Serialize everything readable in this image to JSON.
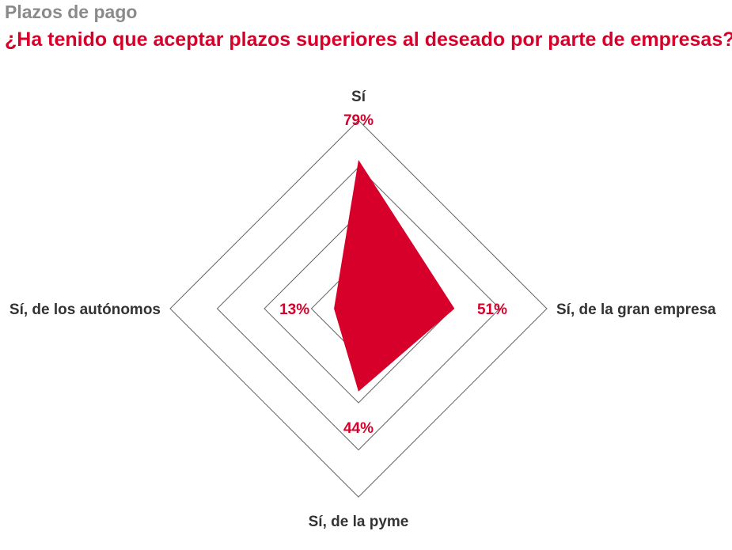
{
  "header": {
    "supertitle": "Plazos de pago",
    "title": "¿Ha tenido que aceptar plazos superiores al deseado por parte de empresas?"
  },
  "colors": {
    "accent": "#d6002a",
    "grid": "#666666",
    "text": "#333333",
    "supertitle": "#8a8a8a"
  },
  "chart_data": {
    "type": "radar",
    "categories": [
      "Sí",
      "Sí, de la gran empresa",
      "Sí, de la pyme",
      "Sí, de los autónomos"
    ],
    "values": [
      79,
      51,
      44,
      13
    ],
    "value_labels": [
      "79%",
      "51%",
      "44%",
      "13%"
    ],
    "rlim": [
      0,
      100
    ],
    "grid_levels": [
      25,
      50,
      75,
      100
    ],
    "legend": "none"
  }
}
